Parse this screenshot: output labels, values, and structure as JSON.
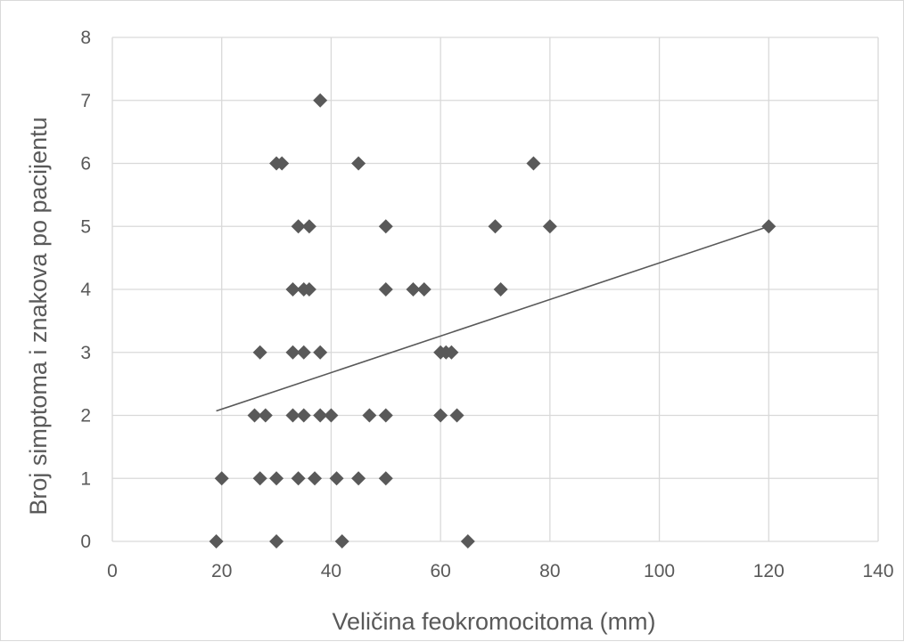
{
  "chart_data": {
    "type": "scatter",
    "title": "",
    "xlabel": "Veličina feokromocitoma (mm)",
    "ylabel": "Broj simptoma i znakova po pacijentu",
    "xlim": [
      0,
      140
    ],
    "ylim": [
      0,
      8
    ],
    "x_ticks": [
      "0",
      "20",
      "40",
      "60",
      "80",
      "100",
      "120",
      "140"
    ],
    "y_ticks": [
      "0",
      "1",
      "2",
      "3",
      "4",
      "5",
      "6",
      "7",
      "8"
    ],
    "grid": true,
    "legend": "none",
    "marker": "diamond",
    "marker_color": "#595959",
    "trendline": {
      "type": "linear",
      "x": [
        19,
        120
      ],
      "y": [
        2.07,
        5.0
      ],
      "color": "#595959"
    },
    "series": [
      {
        "x": [
          19,
          30,
          42,
          65,
          20,
          27,
          30,
          34,
          37,
          41,
          45,
          50,
          26,
          28,
          33,
          35,
          38,
          40,
          47,
          50,
          60,
          63,
          27,
          33,
          35,
          38,
          60,
          61,
          62,
          33,
          35,
          36,
          50,
          55,
          57,
          71,
          34,
          36,
          50,
          70,
          80,
          120,
          30,
          31,
          45,
          77,
          38
        ],
        "y": [
          0,
          0,
          0,
          0,
          1,
          1,
          1,
          1,
          1,
          1,
          1,
          1,
          2,
          2,
          2,
          2,
          2,
          2,
          2,
          2,
          2,
          2,
          3,
          3,
          3,
          3,
          3,
          3,
          3,
          4,
          4,
          4,
          4,
          4,
          4,
          4,
          5,
          5,
          5,
          5,
          5,
          5,
          6,
          6,
          6,
          6,
          7
        ]
      }
    ]
  }
}
